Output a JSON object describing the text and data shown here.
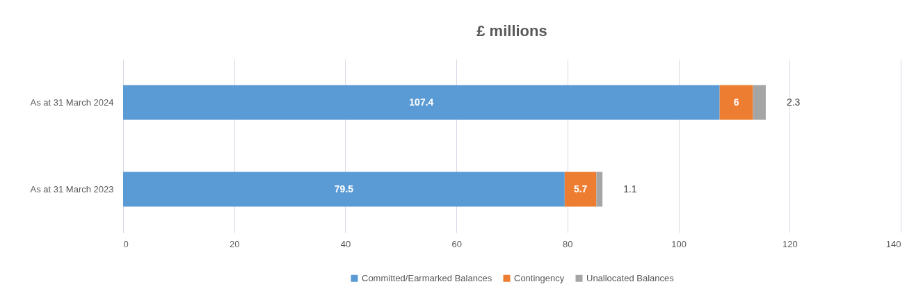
{
  "chart_data": {
    "type": "bar",
    "title": "£ millions",
    "orientation": "horizontal",
    "stacked": true,
    "categories": [
      "As at 31 March 2024",
      "As at 31 March 2023"
    ],
    "series": [
      {
        "name": "Committed/Earmarked Balances",
        "color": "#5b9bd5",
        "values": [
          107.4,
          79.5
        ]
      },
      {
        "name": "Contingency",
        "color": "#ed7d31",
        "values": [
          6,
          5.7
        ]
      },
      {
        "name": "Unallocated Balances",
        "color": "#a5a5a5",
        "values": [
          2.3,
          1.1
        ]
      }
    ],
    "xlim": [
      0,
      140
    ],
    "xticks": [
      0,
      20,
      40,
      60,
      80,
      100,
      120,
      140
    ],
    "grid": "x",
    "legend": "bottom",
    "data_labels": true
  }
}
